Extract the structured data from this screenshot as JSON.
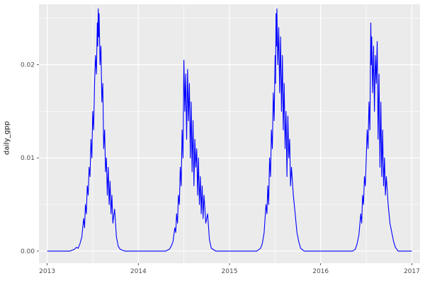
{
  "chart_data": {
    "type": "line",
    "title": "",
    "xlabel": "",
    "ylabel": "daily_gpp",
    "xlim": [
      2012.91,
      2017.09
    ],
    "ylim": [
      -0.0013,
      0.0265
    ],
    "grid": "on",
    "legend": "none",
    "x_ticks": [
      {
        "value": 2013,
        "label": "2013"
      },
      {
        "value": 2014,
        "label": "2014"
      },
      {
        "value": 2015,
        "label": "2015"
      },
      {
        "value": 2016,
        "label": "2016"
      },
      {
        "value": 2017,
        "label": "2017"
      }
    ],
    "y_ticks": [
      {
        "value": 0.0,
        "label": "0.00"
      },
      {
        "value": 0.01,
        "label": "0.01"
      },
      {
        "value": 0.02,
        "label": "0.02"
      }
    ],
    "x_minor": [
      2013.5,
      2014.5,
      2015.5,
      2016.5
    ],
    "y_minor": [
      0.005,
      0.015,
      0.025
    ],
    "colors": {
      "panel_bg": "#EBEBEB",
      "grid": "#FFFFFF",
      "line": "#0000FF",
      "tick_text": "#4D4D4D",
      "tick_mark": "#333333"
    },
    "series": [
      {
        "name": "daily_gpp",
        "points": [
          [
            2013.0,
            0
          ],
          [
            2013.05,
            0
          ],
          [
            2013.1,
            0
          ],
          [
            2013.15,
            0
          ],
          [
            2013.2,
            0
          ],
          [
            2013.25,
            0
          ],
          [
            2013.3,
            0.0002
          ],
          [
            2013.32,
            0.0004
          ],
          [
            2013.34,
            0.0003
          ],
          [
            2013.36,
            0.0008
          ],
          [
            2013.38,
            0.0015
          ],
          [
            2013.4,
            0.0035
          ],
          [
            2013.41,
            0.0025
          ],
          [
            2013.42,
            0.005
          ],
          [
            2013.43,
            0.004
          ],
          [
            2013.44,
            0.007
          ],
          [
            2013.45,
            0.006
          ],
          [
            2013.46,
            0.009
          ],
          [
            2013.47,
            0.008
          ],
          [
            2013.48,
            0.012
          ],
          [
            2013.49,
            0.01
          ],
          [
            2013.5,
            0.015
          ],
          [
            2013.51,
            0.013
          ],
          [
            2013.52,
            0.018
          ],
          [
            2013.53,
            0.021
          ],
          [
            2013.54,
            0.019
          ],
          [
            2013.55,
            0.0245
          ],
          [
            2013.555,
            0.022
          ],
          [
            2013.56,
            0.026
          ],
          [
            2013.565,
            0.023
          ],
          [
            2013.57,
            0.0255
          ],
          [
            2013.58,
            0.02
          ],
          [
            2013.59,
            0.022
          ],
          [
            2013.6,
            0.016
          ],
          [
            2013.61,
            0.018
          ],
          [
            2013.62,
            0.011
          ],
          [
            2013.63,
            0.013
          ],
          [
            2013.64,
            0.0085
          ],
          [
            2013.65,
            0.01
          ],
          [
            2013.66,
            0.006
          ],
          [
            2013.67,
            0.009
          ],
          [
            2013.68,
            0.005
          ],
          [
            2013.69,
            0.0075
          ],
          [
            2013.7,
            0.004
          ],
          [
            2013.71,
            0.006
          ],
          [
            2013.72,
            0.003
          ],
          [
            2013.74,
            0.0045
          ],
          [
            2013.76,
            0.0015
          ],
          [
            2013.78,
            0.0005
          ],
          [
            2013.8,
            0.0002
          ],
          [
            2013.85,
            0
          ],
          [
            2013.9,
            0
          ],
          [
            2013.95,
            0
          ],
          [
            2014.0,
            0
          ],
          [
            2014.05,
            0
          ],
          [
            2014.1,
            0
          ],
          [
            2014.15,
            0
          ],
          [
            2014.2,
            0
          ],
          [
            2014.25,
            0
          ],
          [
            2014.3,
            0
          ],
          [
            2014.34,
            0.0002
          ],
          [
            2014.36,
            0.0005
          ],
          [
            2014.38,
            0.001
          ],
          [
            2014.4,
            0.0025
          ],
          [
            2014.41,
            0.002
          ],
          [
            2014.42,
            0.004
          ],
          [
            2014.43,
            0.003
          ],
          [
            2014.44,
            0.006
          ],
          [
            2014.45,
            0.005
          ],
          [
            2014.46,
            0.009
          ],
          [
            2014.47,
            0.007
          ],
          [
            2014.48,
            0.013
          ],
          [
            2014.49,
            0.01
          ],
          [
            2014.5,
            0.0205
          ],
          [
            2014.51,
            0.015
          ],
          [
            2014.52,
            0.019
          ],
          [
            2014.53,
            0.012
          ],
          [
            2014.54,
            0.0195
          ],
          [
            2014.55,
            0.014
          ],
          [
            2014.56,
            0.018
          ],
          [
            2014.57,
            0.01
          ],
          [
            2014.58,
            0.016
          ],
          [
            2014.59,
            0.0085
          ],
          [
            2014.6,
            0.014
          ],
          [
            2014.61,
            0.007
          ],
          [
            2014.62,
            0.012
          ],
          [
            2014.63,
            0.009
          ],
          [
            2014.64,
            0.011
          ],
          [
            2014.65,
            0.006
          ],
          [
            2014.66,
            0.01
          ],
          [
            2014.67,
            0.005
          ],
          [
            2014.68,
            0.008
          ],
          [
            2014.69,
            0.004
          ],
          [
            2014.7,
            0.007
          ],
          [
            2014.71,
            0.0035
          ],
          [
            2014.72,
            0.006
          ],
          [
            2014.74,
            0.003
          ],
          [
            2014.76,
            0.004
          ],
          [
            2014.78,
            0.0012
          ],
          [
            2014.8,
            0.0003
          ],
          [
            2014.85,
            0
          ],
          [
            2014.9,
            0
          ],
          [
            2014.95,
            0
          ],
          [
            2015.0,
            0
          ],
          [
            2015.05,
            0
          ],
          [
            2015.1,
            0
          ],
          [
            2015.15,
            0
          ],
          [
            2015.2,
            0
          ],
          [
            2015.25,
            0
          ],
          [
            2015.3,
            0
          ],
          [
            2015.34,
            0.0003
          ],
          [
            2015.36,
            0.0008
          ],
          [
            2015.38,
            0.002
          ],
          [
            2015.4,
            0.005
          ],
          [
            2015.41,
            0.004
          ],
          [
            2015.42,
            0.007
          ],
          [
            2015.43,
            0.005
          ],
          [
            2015.44,
            0.01
          ],
          [
            2015.45,
            0.008
          ],
          [
            2015.46,
            0.013
          ],
          [
            2015.47,
            0.011
          ],
          [
            2015.48,
            0.017
          ],
          [
            2015.49,
            0.014
          ],
          [
            2015.5,
            0.021
          ],
          [
            2015.505,
            0.018
          ],
          [
            2015.51,
            0.0255
          ],
          [
            2015.515,
            0.022
          ],
          [
            2015.52,
            0.026
          ],
          [
            2015.53,
            0.02
          ],
          [
            2015.54,
            0.024
          ],
          [
            2015.55,
            0.017
          ],
          [
            2015.56,
            0.023
          ],
          [
            2015.57,
            0.015
          ],
          [
            2015.58,
            0.021
          ],
          [
            2015.59,
            0.013
          ],
          [
            2015.6,
            0.018
          ],
          [
            2015.61,
            0.011
          ],
          [
            2015.62,
            0.015
          ],
          [
            2015.63,
            0.008
          ],
          [
            2015.64,
            0.0145
          ],
          [
            2015.65,
            0.01
          ],
          [
            2015.66,
            0.012
          ],
          [
            2015.67,
            0.007
          ],
          [
            2015.68,
            0.009
          ],
          [
            2015.7,
            0.006
          ],
          [
            2015.72,
            0.004
          ],
          [
            2015.74,
            0.002
          ],
          [
            2015.76,
            0.001
          ],
          [
            2015.78,
            0.0003
          ],
          [
            2015.82,
            0
          ],
          [
            2015.86,
            0
          ],
          [
            2015.9,
            0
          ],
          [
            2015.95,
            0
          ],
          [
            2016.0,
            0
          ],
          [
            2016.05,
            0
          ],
          [
            2016.1,
            0
          ],
          [
            2016.15,
            0
          ],
          [
            2016.2,
            0
          ],
          [
            2016.25,
            0
          ],
          [
            2016.3,
            0
          ],
          [
            2016.35,
            0
          ],
          [
            2016.38,
            0.0002
          ],
          [
            2016.4,
            0.0008
          ],
          [
            2016.42,
            0.0018
          ],
          [
            2016.44,
            0.004
          ],
          [
            2016.45,
            0.003
          ],
          [
            2016.46,
            0.006
          ],
          [
            2016.47,
            0.005
          ],
          [
            2016.48,
            0.008
          ],
          [
            2016.49,
            0.007
          ],
          [
            2016.5,
            0.01
          ],
          [
            2016.51,
            0.013
          ],
          [
            2016.52,
            0.011
          ],
          [
            2016.53,
            0.016
          ],
          [
            2016.54,
            0.013
          ],
          [
            2016.55,
            0.0245
          ],
          [
            2016.555,
            0.02
          ],
          [
            2016.56,
            0.023
          ],
          [
            2016.57,
            0.017
          ],
          [
            2016.58,
            0.022
          ],
          [
            2016.59,
            0.015
          ],
          [
            2016.6,
            0.021
          ],
          [
            2016.61,
            0.018
          ],
          [
            2016.62,
            0.0225
          ],
          [
            2016.63,
            0.012
          ],
          [
            2016.64,
            0.019
          ],
          [
            2016.65,
            0.009
          ],
          [
            2016.66,
            0.016
          ],
          [
            2016.67,
            0.008
          ],
          [
            2016.68,
            0.013
          ],
          [
            2016.69,
            0.007
          ],
          [
            2016.7,
            0.01
          ],
          [
            2016.71,
            0.006
          ],
          [
            2016.72,
            0.008
          ],
          [
            2016.74,
            0.005
          ],
          [
            2016.76,
            0.003
          ],
          [
            2016.78,
            0.002
          ],
          [
            2016.8,
            0.001
          ],
          [
            2016.82,
            0.0004
          ],
          [
            2016.85,
            0
          ],
          [
            2016.9,
            0
          ],
          [
            2016.95,
            0
          ],
          [
            2017.0,
            0
          ]
        ]
      }
    ]
  }
}
